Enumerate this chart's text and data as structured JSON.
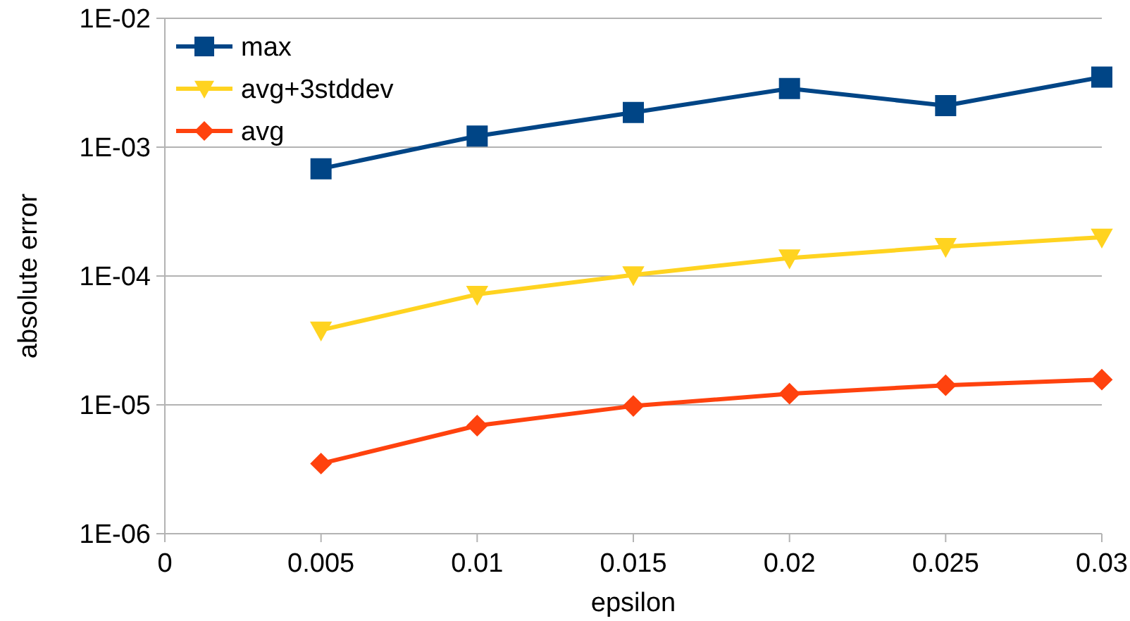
{
  "chart_data": {
    "type": "line",
    "xlabel": "epsilon",
    "ylabel": "absolute error",
    "log": "y",
    "grid": "y",
    "legend": "top left",
    "xlim": [
      0,
      0.03
    ],
    "xticks": [
      0,
      0.005,
      0.01,
      0.015,
      0.02,
      0.025,
      0.03
    ],
    "ylim": [
      1e-06,
      0.01
    ],
    "yticks": [
      {
        "value": 1e-06,
        "label": "1E-06"
      },
      {
        "value": 1e-05,
        "label": "1E-05"
      },
      {
        "value": 0.0001,
        "label": "1E-04"
      },
      {
        "value": 0.001,
        "label": "1E-03"
      },
      {
        "value": 0.01,
        "label": "1E-02"
      }
    ],
    "x": [
      0.005,
      0.01,
      0.015,
      0.02,
      0.025,
      0.03
    ],
    "series": [
      {
        "name": "max",
        "color": "#004586",
        "marker": "square",
        "values": [
          0.00068,
          0.00122,
          0.00186,
          0.00285,
          0.0021,
          0.0035
        ]
      },
      {
        "name": "avg+3stddev",
        "color": "#ffd320",
        "marker": "triangle",
        "values": [
          3.8e-05,
          7.2e-05,
          0.000102,
          0.000138,
          0.000169,
          0.0002
        ]
      },
      {
        "name": "avg",
        "color": "#ff420e",
        "marker": "diamond",
        "values": [
          3.5e-06,
          6.9e-06,
          9.8e-06,
          1.22e-05,
          1.42e-05,
          1.57e-05
        ]
      }
    ]
  }
}
